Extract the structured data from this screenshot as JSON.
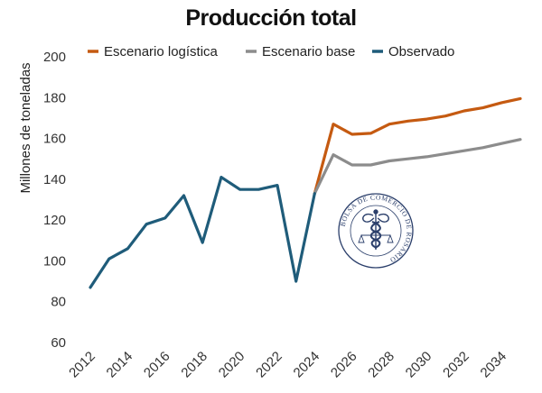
{
  "chart_data": {
    "type": "line",
    "title": "Producción total",
    "xlabel": "",
    "ylabel": "Millones de toneladas",
    "ylim": [
      60,
      200
    ],
    "xlim": [
      2012,
      2035
    ],
    "yticks": [
      "60",
      "80",
      "100",
      "120",
      "140",
      "160",
      "180",
      "200"
    ],
    "xticks": [
      "2012",
      "2014",
      "2016",
      "2018",
      "2020",
      "2022",
      "2024",
      "2026",
      "2028",
      "2030",
      "2032",
      "2034"
    ],
    "grid": false,
    "legend_position": "top",
    "series": [
      {
        "name": "Escenario logística",
        "color": "#C55A11",
        "x": [
          2024,
          2025,
          2026,
          2027,
          2028,
          2029,
          2030,
          2031,
          2032,
          2033,
          2034,
          2035
        ],
        "values": [
          133,
          167,
          162,
          162.5,
          167,
          168.5,
          169.5,
          171,
          173.5,
          175,
          177.5,
          179.5
        ]
      },
      {
        "name": "Escenario base",
        "color": "#8C8C8C",
        "x": [
          2024,
          2025,
          2026,
          2027,
          2028,
          2029,
          2030,
          2031,
          2032,
          2033,
          2034,
          2035
        ],
        "values": [
          133,
          152,
          147,
          147,
          149,
          150,
          151,
          152.5,
          154,
          155.5,
          157.5,
          159.5
        ]
      },
      {
        "name": "Observado",
        "color": "#1F5C7A",
        "x": [
          2012,
          2013,
          2014,
          2015,
          2016,
          2017,
          2018,
          2019,
          2020,
          2021,
          2022,
          2023,
          2024
        ],
        "values": [
          87,
          101,
          106,
          118,
          121,
          132,
          109,
          141,
          135,
          135,
          137,
          90,
          133
        ]
      }
    ]
  },
  "watermark": {
    "text": "BOLSA DE COMERCIO DE ROSARIO",
    "icon": "caduceus-seal-icon",
    "color": "#2B3F6B"
  }
}
